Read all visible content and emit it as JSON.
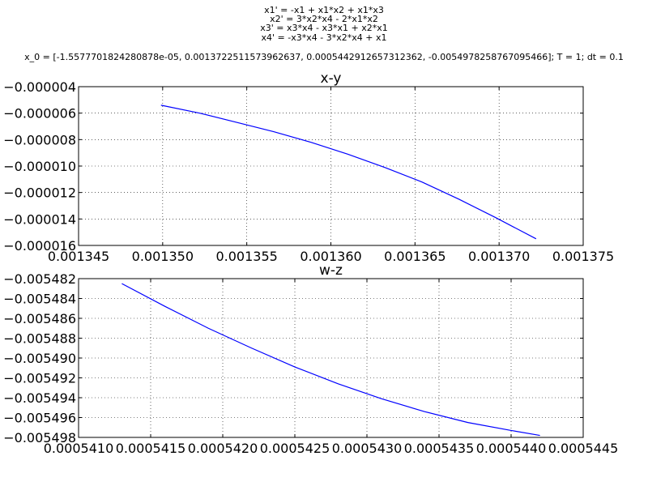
{
  "figure": {
    "suptitle_lines": [
      "x1' = -x1 + x1*x2 + x1*x3",
      "x2' = 3*x2*x4 - 2*x1*x2",
      "x3' = x3*x4 - x3*x1 + x2*x1",
      "x4' = -x3*x4 - 3*x2*x4 + x1",
      "",
      "x_0 = [-1.5577701824280878e-05, 0.0013722511573962637, 0.0005442912657312362, -0.0054978258767095466]; T = 1; dt = 0.1"
    ],
    "line_color": "#0000ff",
    "grid_color": "#000000"
  },
  "chart_data": [
    {
      "type": "line",
      "title": "x-y",
      "xlabel": "",
      "ylabel": "",
      "xlim": [
        0.001345,
        0.001375
      ],
      "ylim": [
        -1.6e-05,
        -4e-06
      ],
      "xticks": [
        0.001345,
        0.00135,
        0.001355,
        0.00136,
        0.001365,
        0.00137,
        0.001375
      ],
      "xtick_labels": [
        "0.001345",
        "0.001350",
        "0.001355",
        "0.001360",
        "0.001365",
        "0.001370",
        "0.001375"
      ],
      "yticks": [
        -4e-06,
        -6e-06,
        -8e-06,
        -1e-05,
        -1.2e-05,
        -1.4e-05,
        -1.6e-05
      ],
      "ytick_labels": [
        "−0.000004",
        "−0.000006",
        "−0.000008",
        "−0.000010",
        "−0.000012",
        "−0.000014",
        "−0.000016"
      ],
      "grid": true,
      "series": [
        {
          "name": "x-y",
          "x": [
            0.0013499,
            0.0013522,
            0.0013544,
            0.0013566,
            0.0013588,
            0.001361,
            0.0013632,
            0.0013654,
            0.0013676,
            0.0013698,
            0.0013722
          ],
          "y": [
            -5.4e-06,
            -6e-06,
            -6.7e-06,
            -7.4e-06,
            -8.2e-06,
            -9.1e-06,
            -1.01e-05,
            -1.12e-05,
            -1.25e-05,
            -1.39e-05,
            -1.55e-05
          ]
        }
      ]
    },
    {
      "type": "line",
      "title": "w-z",
      "xlabel": "",
      "ylabel": "",
      "xlim": [
        0.000541,
        0.0005445
      ],
      "ylim": [
        -0.005498,
        -0.005482
      ],
      "xticks": [
        0.000541,
        0.0005415,
        0.000542,
        0.0005425,
        0.000543,
        0.0005435,
        0.000544,
        0.0005445
      ],
      "xtick_labels": [
        "0.0005410",
        "0.0005415",
        "0.0005420",
        "0.0005425",
        "0.0005430",
        "0.0005435",
        "0.0005440",
        "0.0005445"
      ],
      "yticks": [
        -0.005482,
        -0.005484,
        -0.005486,
        -0.005488,
        -0.00549,
        -0.005492,
        -0.005494,
        -0.005496,
        -0.005498
      ],
      "ytick_labels": [
        "−0.005482",
        "−0.005484",
        "−0.005486",
        "−0.005488",
        "−0.005490",
        "−0.005492",
        "−0.005494",
        "−0.005496",
        "−0.005498"
      ],
      "grid": true,
      "series": [
        {
          "name": "w-z",
          "x": [
            0.0005413,
            0.0005416,
            0.0005419,
            0.0005422,
            0.0005425,
            0.0005428,
            0.0005431,
            0.0005434,
            0.0005437,
            0.000544,
            0.0005442
          ],
          "y": [
            -0.0054825,
            -0.0054848,
            -0.005487,
            -0.005489,
            -0.0054909,
            -0.0054926,
            -0.0054941,
            -0.0054954,
            -0.0054965,
            -0.0054973,
            -0.0054978
          ]
        }
      ]
    }
  ]
}
